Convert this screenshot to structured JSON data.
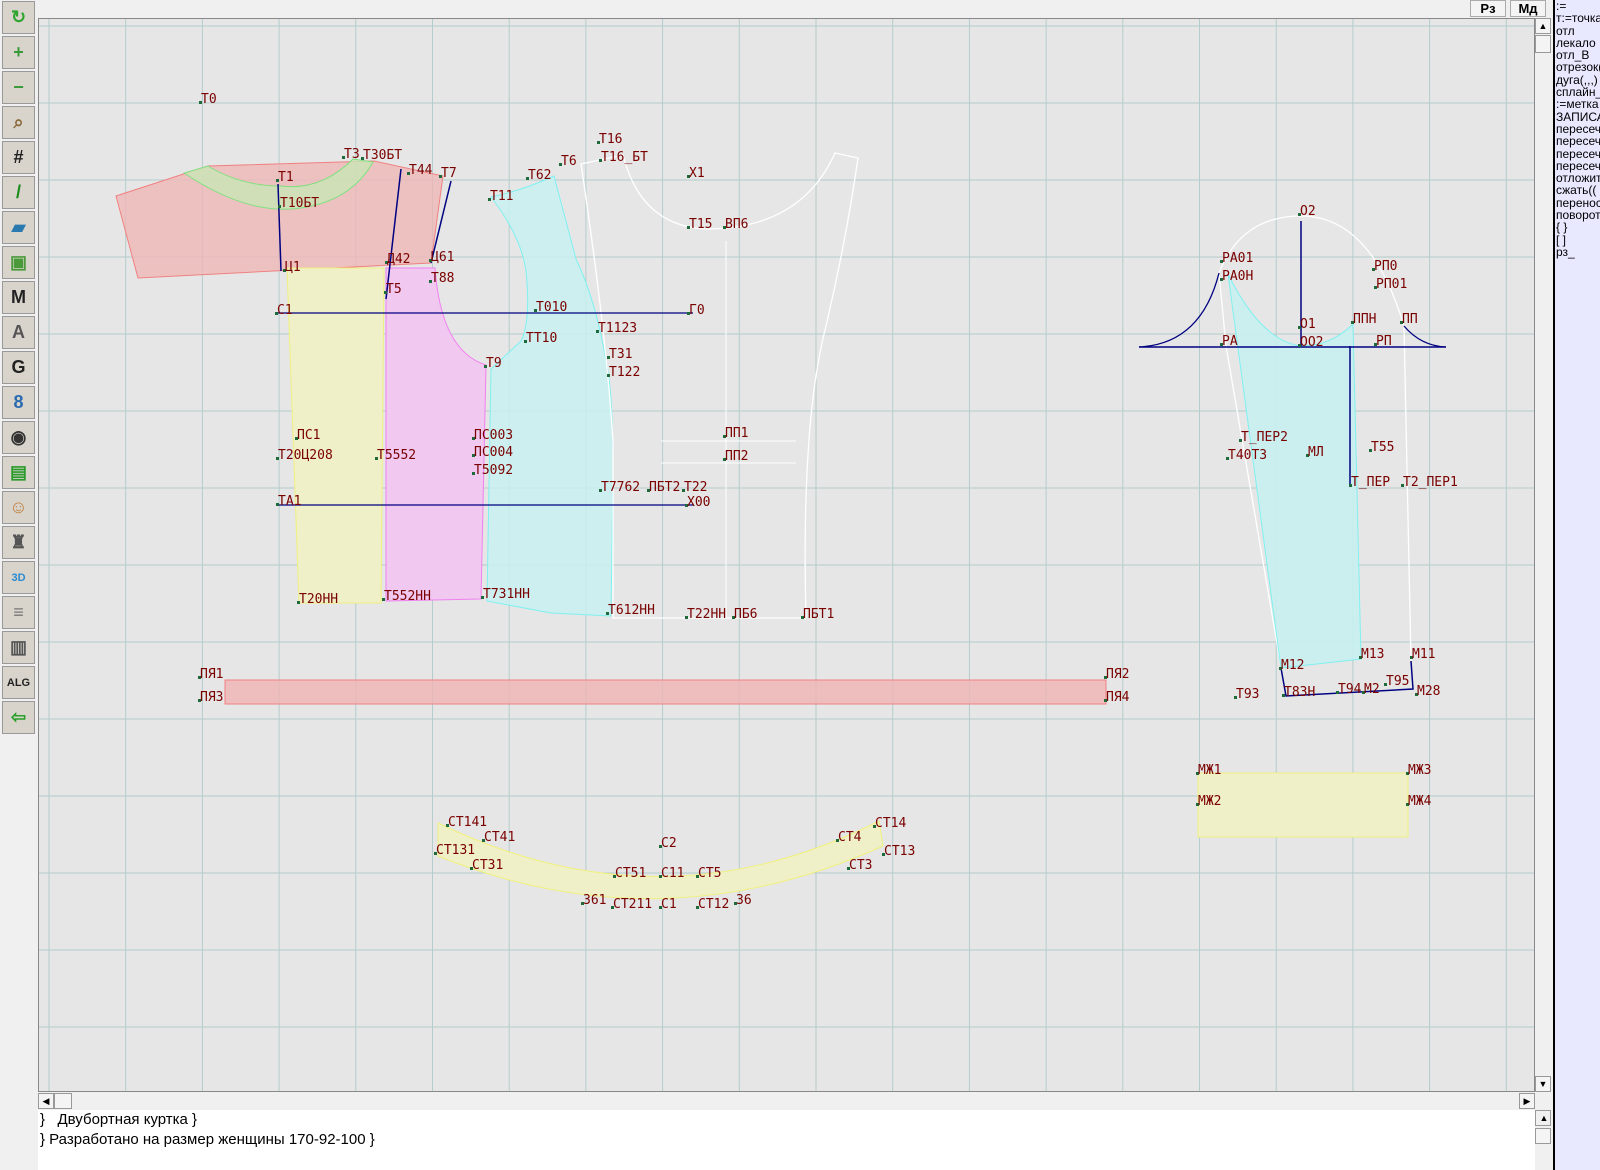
{
  "toolbar": {
    "tools": [
      {
        "icon": "refresh-icon",
        "glyph": "↻",
        "color": "#2fa52f"
      },
      {
        "icon": "zoom-in-icon",
        "glyph": "+",
        "color": "#3a9a3a"
      },
      {
        "icon": "zoom-out-icon",
        "glyph": "−",
        "color": "#3a9a3a"
      },
      {
        "icon": "pattern-view-icon",
        "glyph": "⌕",
        "color": "#8b6b3a"
      },
      {
        "icon": "grid-icon",
        "glyph": "#",
        "color": "#222222"
      },
      {
        "icon": "line-segment-icon",
        "glyph": "/",
        "color": "#1a8a1a"
      },
      {
        "icon": "pattern-map-icon",
        "glyph": "▰",
        "color": "#2a7ab0"
      },
      {
        "icon": "pattern-piece-icon",
        "glyph": "▣",
        "color": "#4a9a3a"
      },
      {
        "icon": "modeling-icon",
        "glyph": "M",
        "color": "#222222"
      },
      {
        "icon": "compass-icon",
        "glyph": "A",
        "color": "#555555"
      },
      {
        "icon": "grading-icon",
        "glyph": "G",
        "color": "#222222"
      },
      {
        "icon": "measurements-icon",
        "glyph": "8",
        "color": "#2a6ab0"
      },
      {
        "icon": "camera-icon",
        "glyph": "◉",
        "color": "#333333"
      },
      {
        "icon": "spreadsheet-icon",
        "glyph": "▤",
        "color": "#2a9a2a"
      },
      {
        "icon": "model-photo-icon",
        "glyph": "☺",
        "color": "#c08040"
      },
      {
        "icon": "jacket-icon",
        "glyph": "♜",
        "color": "#555555"
      },
      {
        "icon": "3d-icon",
        "glyph": "3D",
        "color": "#2a8ad0"
      },
      {
        "icon": "text-list-icon",
        "glyph": "≡",
        "color": "#777777"
      },
      {
        "icon": "books-icon",
        "glyph": "▥",
        "color": "#555555"
      },
      {
        "icon": "algorithm-icon",
        "glyph": "ALG",
        "color": "#222222"
      },
      {
        "icon": "exit-icon",
        "glyph": "⇦",
        "color": "#2aa02a"
      }
    ]
  },
  "topbar": {
    "rz_label": "Рз",
    "md_label": "Мд"
  },
  "command_panel": {
    "items": [
      ":=",
      "т:=точка",
      "отл",
      "лекало",
      "отл_В",
      "отрезок(",
      "дуга(,,,)",
      "сплайн_",
      ":=метка",
      "ЗАПИСА",
      "пересеч",
      "пересеч",
      "пересеч",
      "пересеч",
      "отложит",
      "сжать((",
      "перенос",
      "поворот",
      "{  }",
      "[  ]",
      "рз_"
    ]
  },
  "notes": {
    "lines": [
      "}   Двубортная куртка }",
      "} Разработано на размер женщины 170-92-100 }"
    ]
  },
  "colors": {
    "label": "#7a0000",
    "construction_line": "#000080",
    "grid": "#b4cccc",
    "shoulder_piece": "#f0b4b4",
    "collar_piece": "#c8e6b4",
    "side_piece": "#f0f0c8",
    "side_front_piece": "#f0c8f0",
    "front_piece": "#c8f0f0",
    "outline": "#ffffff"
  },
  "pattern_labels": [
    "Т0",
    "Т3",
    "Т30БТ",
    "Т44",
    "Т7",
    "Т1",
    "Т10БТ",
    "Ц1",
    "Д42",
    "Ц61",
    "Т88",
    "Т5",
    "С1",
    "Т010",
    "Г0",
    "ТТ10",
    "Т1123",
    "Т9",
    "Т31",
    "Т122",
    "ПС1",
    "Т20Ц208",
    "Т5552",
    "ПС003",
    "ПС004",
    "Т5092",
    "Т7762",
    "ПБТ2",
    "Т22",
    "ТА1",
    "Х00",
    "Т20НН",
    "Т552НН",
    "Т731НН",
    "Т612НН",
    "Т22НН",
    "ПБ6",
    "ПБТ1",
    "Т16",
    "Т16_БТ",
    "Т6",
    "Т62",
    "Т11",
    "Х1",
    "Т15",
    "ВП6",
    "ПП1",
    "ПП2",
    "ПЯ1",
    "ПЯ3",
    "ПЯ2",
    "ПЯ4",
    "О2",
    "РА01",
    "РА0Н",
    "РП0",
    "РП01",
    "О1",
    "ППН",
    "ПП",
    "РА",
    "ОО2",
    "РП",
    "Т_ПЕР2",
    "Т40Т3",
    "МЛ",
    "Т55",
    "Т_ПЕР",
    "Т2_ПЕР1",
    "М12",
    "М13",
    "М11",
    "Т93",
    "Т83Н",
    "Т94",
    "М2",
    "Т95",
    "М28",
    "МЖ1",
    "МЖ3",
    "МЖ2",
    "МЖ4",
    "СТ141",
    "СТ41",
    "СТ131",
    "СТ31",
    "С2",
    "СТ51",
    "С11",
    "СТ5",
    "361",
    "СТ211",
    "С1",
    "СТ12",
    "36",
    "СТ14",
    "СТ4",
    "СТ13",
    "СТ3"
  ]
}
